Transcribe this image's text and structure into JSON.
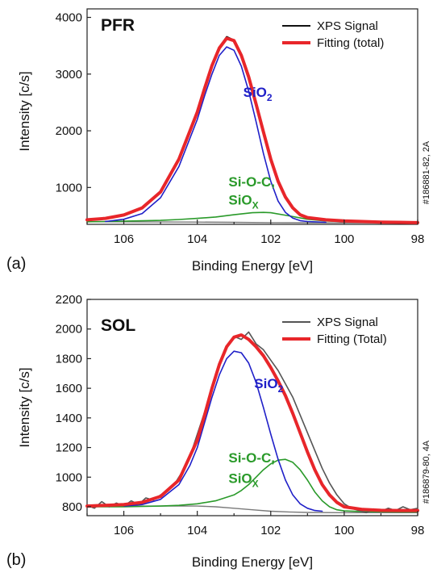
{
  "chart_data": [
    {
      "type": "line",
      "id": "a",
      "panel_id": "(a)",
      "title": "PFR",
      "sample_id": "#186881-82, 2A",
      "xlabel": "Binding Energy [eV]",
      "ylabel": "Intensity [c/s]",
      "xlim": [
        107,
        98
      ],
      "ylim": [
        350,
        4150
      ],
      "xticks": [
        106,
        104,
        102,
        100,
        98
      ],
      "yticks": [
        1000,
        2000,
        3000,
        4000
      ],
      "legend": {
        "position": "top-right",
        "entries": [
          {
            "label": "XPS Signal",
            "color": "#111111"
          },
          {
            "label": "Fitting (total)",
            "color": "#e8262a"
          }
        ]
      },
      "annotations": [
        {
          "main": "SiO",
          "sub": "2",
          "color": "#2020c8",
          "x": 102.75,
          "y": 2600
        },
        {
          "main": "Si-O-C,",
          "sub": "",
          "color": "#2a9a2a",
          "x": 103.15,
          "y": 1020
        },
        {
          "main": "SiO",
          "sub": "X",
          "color": "#2a9a2a",
          "x": 103.15,
          "y": 700
        }
      ],
      "series": [
        {
          "name": "",
          "role": "signal",
          "color": "#111111",
          "x": [
            107,
            106.5,
            106,
            105.5,
            105,
            104.5,
            104,
            103.8,
            103.6,
            103.4,
            103.2,
            103.0,
            102.8,
            102.6,
            102.4,
            102.2,
            102.0,
            101.8,
            101.6,
            101.4,
            101.2,
            101.0,
            100.5,
            100.0,
            99.5,
            99.0,
            98.5,
            98.0
          ],
          "y": [
            430,
            455,
            520,
            640,
            920,
            1500,
            2340,
            2750,
            3150,
            3480,
            3660,
            3600,
            3320,
            2960,
            2470,
            1990,
            1500,
            1120,
            830,
            640,
            520,
            470,
            430,
            410,
            400,
            390,
            385,
            380
          ]
        },
        {
          "name": "",
          "role": "fit_total",
          "color": "#e8262a",
          "x": [
            107,
            106.5,
            106,
            105.5,
            105,
            104.5,
            104,
            103.8,
            103.6,
            103.4,
            103.2,
            103.0,
            102.8,
            102.6,
            102.4,
            102.2,
            102.0,
            101.8,
            101.6,
            101.4,
            101.2,
            101.0,
            100.5,
            100.0,
            99.5,
            99.0,
            98.5,
            98.0
          ],
          "y": [
            430,
            455,
            515,
            640,
            920,
            1500,
            2330,
            2750,
            3150,
            3460,
            3630,
            3590,
            3330,
            2950,
            2470,
            1980,
            1500,
            1110,
            830,
            640,
            520,
            470,
            430,
            410,
            400,
            390,
            385,
            380
          ]
        },
        {
          "name": "",
          "role": "component_SiO2",
          "color": "#2020c8",
          "x": [
            106.5,
            106,
            105.5,
            105,
            104.5,
            104,
            103.8,
            103.6,
            103.4,
            103.2,
            103.0,
            102.8,
            102.6,
            102.4,
            102.2,
            102.0,
            101.8,
            101.6,
            101.4,
            101.2,
            101.0,
            100.5
          ],
          "y": [
            400,
            440,
            540,
            820,
            1370,
            2200,
            2620,
            3000,
            3330,
            3480,
            3420,
            3140,
            2700,
            2160,
            1600,
            1110,
            760,
            560,
            460,
            415,
            400,
            385
          ]
        },
        {
          "name": "",
          "role": "component_SiOC",
          "color": "#2a9a2a",
          "x": [
            107,
            106,
            105,
            104.5,
            104,
            103.5,
            103,
            102.5,
            102.2,
            102,
            101.5,
            101,
            100.5,
            100,
            99.5,
            99,
            98
          ],
          "y": [
            395,
            405,
            420,
            435,
            455,
            480,
            520,
            555,
            560,
            555,
            500,
            440,
            410,
            400,
            396,
            394,
            392
          ]
        },
        {
          "name": "",
          "role": "background",
          "color": "#7a7a7a",
          "x": [
            107,
            104,
            103,
            102,
            101,
            100,
            98
          ],
          "y": [
            395,
            390,
            385,
            380,
            378,
            376,
            375
          ]
        }
      ]
    },
    {
      "type": "line",
      "id": "b",
      "panel_id": "(b)",
      "title": "SOL",
      "sample_id": "#186879-80, 4A",
      "xlabel": "Binding Energy [eV]",
      "ylabel": "Intensity [c/s]",
      "xlim": [
        107,
        98
      ],
      "ylim": [
        740,
        2200
      ],
      "xticks": [
        106,
        104,
        102,
        100,
        98
      ],
      "yticks": [
        800,
        1000,
        1200,
        1400,
        1600,
        1800,
        2000,
        2200
      ],
      "legend": {
        "position": "top-right",
        "entries": [
          {
            "label": "XPS Signal",
            "color": "#555555"
          },
          {
            "label": "Fitting (Total)",
            "color": "#e8262a"
          }
        ]
      },
      "annotations": [
        {
          "main": "SiO",
          "sub": "2",
          "color": "#2020c8",
          "x": 102.45,
          "y": 1600
        },
        {
          "main": "Si-O-C,",
          "sub": "",
          "color": "#2a9a2a",
          "x": 103.15,
          "y": 1100
        },
        {
          "main": "SiO",
          "sub": "X",
          "color": "#2a9a2a",
          "x": 103.15,
          "y": 960
        }
      ],
      "series": [
        {
          "name": "",
          "role": "signal",
          "color": "#555555",
          "x": [
            107,
            106.8,
            106.6,
            106.4,
            106.2,
            106.0,
            105.8,
            105.6,
            105.4,
            105.2,
            105.0,
            104.8,
            104.6,
            104.4,
            104.2,
            104.0,
            103.8,
            103.6,
            103.4,
            103.2,
            103.0,
            102.8,
            102.6,
            102.4,
            102.2,
            102.0,
            101.8,
            101.6,
            101.4,
            101.2,
            101.0,
            100.8,
            100.6,
            100.4,
            100.2,
            100.0,
            99.8,
            99.6,
            99.4,
            99.2,
            99.0,
            98.8,
            98.6,
            98.4,
            98.2,
            98.0
          ],
          "y": [
            810,
            790,
            835,
            800,
            825,
            805,
            840,
            815,
            860,
            845,
            880,
            905,
            960,
            1040,
            1140,
            1290,
            1440,
            1600,
            1760,
            1880,
            1950,
            1930,
            1980,
            1900,
            1860,
            1790,
            1720,
            1630,
            1540,
            1420,
            1300,
            1180,
            1060,
            960,
            880,
            820,
            790,
            775,
            760,
            785,
            770,
            790,
            775,
            800,
            780,
            790
          ]
        },
        {
          "name": "",
          "role": "fit_total",
          "color": "#e8262a",
          "x": [
            107,
            106.5,
            106,
            105.5,
            105,
            104.5,
            104,
            103.8,
            103.6,
            103.4,
            103.2,
            103.0,
            102.8,
            102.6,
            102.4,
            102.2,
            102.0,
            101.8,
            101.6,
            101.4,
            101.2,
            101.0,
            100.8,
            100.6,
            100.4,
            100.2,
            100.0,
            99.5,
            99.0,
            98.5,
            98.0
          ],
          "y": [
            805,
            810,
            815,
            830,
            870,
            980,
            1250,
            1420,
            1600,
            1760,
            1880,
            1945,
            1960,
            1930,
            1880,
            1820,
            1740,
            1650,
            1550,
            1430,
            1300,
            1170,
            1050,
            950,
            880,
            830,
            800,
            782,
            776,
            775,
            775
          ]
        },
        {
          "name": "",
          "role": "component_SiO2",
          "color": "#2020c8",
          "x": [
            106,
            105.5,
            105,
            104.5,
            104.2,
            104.0,
            103.8,
            103.6,
            103.4,
            103.2,
            103.0,
            102.8,
            102.6,
            102.4,
            102.2,
            102.0,
            101.8,
            101.6,
            101.4,
            101.2,
            101.0,
            100.8,
            100.6
          ],
          "y": [
            805,
            815,
            850,
            950,
            1080,
            1200,
            1370,
            1540,
            1690,
            1800,
            1850,
            1840,
            1770,
            1640,
            1470,
            1290,
            1120,
            980,
            880,
            820,
            790,
            775,
            770
          ]
        },
        {
          "name": "",
          "role": "component_SiOC",
          "color": "#2a9a2a",
          "x": [
            107,
            106,
            105,
            104.5,
            104,
            103.5,
            103.0,
            102.8,
            102.6,
            102.4,
            102.2,
            102.0,
            101.8,
            101.6,
            101.4,
            101.2,
            101.0,
            100.8,
            100.6,
            100.4,
            100.2,
            100.0,
            99.5,
            99.0,
            98.5,
            98.0
          ],
          "y": [
            800,
            800,
            805,
            810,
            820,
            840,
            880,
            910,
            950,
            1000,
            1050,
            1090,
            1115,
            1120,
            1100,
            1050,
            980,
            900,
            840,
            800,
            780,
            772,
            768,
            766,
            765,
            765
          ]
        },
        {
          "name": "",
          "role": "background",
          "color": "#7a7a7a",
          "x": [
            107,
            105,
            104,
            103.5,
            103,
            102.5,
            102,
            101.5,
            101,
            100,
            99,
            98
          ],
          "y": [
            805,
            805,
            805,
            800,
            790,
            780,
            770,
            765,
            762,
            760,
            760,
            760
          ]
        }
      ]
    }
  ]
}
